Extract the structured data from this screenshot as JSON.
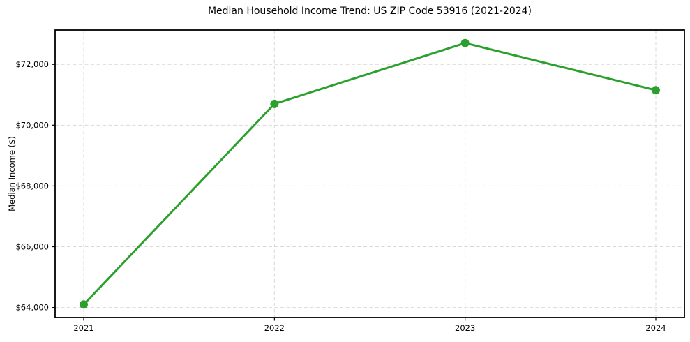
{
  "chart_data": {
    "type": "line",
    "title": "Median Household Income Trend: US ZIP Code 53916 (2021-2024)",
    "xlabel": "",
    "ylabel": "Median Income ($)",
    "x": [
      2021,
      2022,
      2023,
      2024
    ],
    "values": [
      64100,
      70700,
      72700,
      71150
    ],
    "x_tick_labels": [
      "2021",
      "2022",
      "2023",
      "2024"
    ],
    "y_ticks": [
      64000,
      66000,
      68000,
      70000,
      72000
    ],
    "y_tick_labels": [
      "$64,000",
      "$66,000",
      "$68,000",
      "$70,000",
      "$72,000"
    ],
    "xlim": [
      2020.85,
      2024.15
    ],
    "ylim": [
      63670,
      73130
    ],
    "grid": true,
    "legend": "none",
    "line_color": "#2ca02c",
    "marker": "circle"
  }
}
